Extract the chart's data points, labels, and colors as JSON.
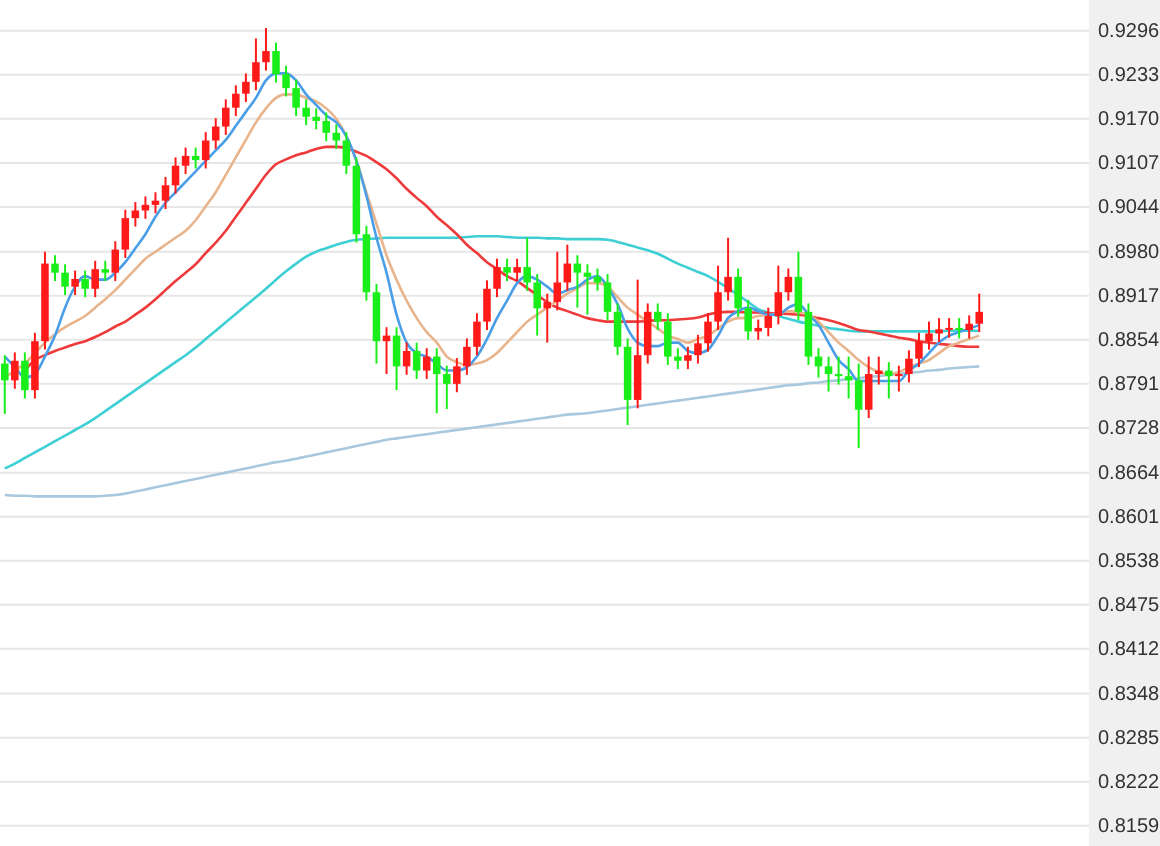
{
  "chart_data": {
    "type": "candlestick",
    "categories": [
      null,
      null,
      null,
      null,
      null,
      null,
      null,
      null,
      null,
      null,
      null,
      null,
      null,
      null,
      null,
      null,
      null,
      null,
      null,
      null,
      null,
      null,
      null,
      null,
      null,
      null,
      null,
      null,
      null,
      null,
      null,
      null,
      null,
      null,
      null,
      null,
      null,
      null,
      null,
      null,
      null,
      null,
      null,
      null,
      null,
      null,
      null,
      null,
      null,
      null,
      null,
      null,
      null,
      null,
      null,
      null,
      null,
      null,
      null,
      null,
      null,
      null,
      null,
      null,
      null,
      null,
      null,
      null,
      null,
      null,
      null,
      null,
      null,
      null,
      null,
      null,
      null,
      null,
      null,
      null,
      null,
      null,
      null,
      null,
      null,
      null,
      null,
      null,
      null,
      null,
      null,
      null,
      null,
      null,
      null,
      null,
      null,
      null
    ],
    "ohlc": [
      [
        0.882,
        0.8832,
        0.8748,
        0.8796
      ],
      [
        0.8796,
        0.8836,
        0.8784,
        0.8824
      ],
      [
        0.8824,
        0.8836,
        0.877,
        0.8782
      ],
      [
        0.8782,
        0.8864,
        0.877,
        0.8852
      ],
      [
        0.8852,
        0.898,
        0.884,
        0.8963
      ],
      [
        0.8963,
        0.8975,
        0.8938,
        0.895
      ],
      [
        0.895,
        0.8962,
        0.8918,
        0.893
      ],
      [
        0.893,
        0.8953,
        0.8918,
        0.8941
      ],
      [
        0.8941,
        0.8953,
        0.8915,
        0.8927
      ],
      [
        0.8927,
        0.8967,
        0.8915,
        0.8955
      ],
      [
        0.8955,
        0.8967,
        0.8938,
        0.895
      ],
      [
        0.895,
        0.8995,
        0.8938,
        0.8983
      ],
      [
        0.8983,
        0.904,
        0.8971,
        0.9028
      ],
      [
        0.9028,
        0.9051,
        0.9016,
        0.9039
      ],
      [
        0.9039,
        0.9059,
        0.9027,
        0.9047
      ],
      [
        0.9047,
        0.9065,
        0.9035,
        0.9053
      ],
      [
        0.9053,
        0.9087,
        0.9041,
        0.9075
      ],
      [
        0.9075,
        0.9115,
        0.9063,
        0.9103
      ],
      [
        0.9103,
        0.9129,
        0.9091,
        0.9117
      ],
      [
        0.9117,
        0.9129,
        0.9099,
        0.9111
      ],
      [
        0.9111,
        0.9151,
        0.9099,
        0.9139
      ],
      [
        0.9139,
        0.9171,
        0.9127,
        0.9159
      ],
      [
        0.9159,
        0.9198,
        0.9147,
        0.9186
      ],
      [
        0.9186,
        0.9218,
        0.9174,
        0.9206
      ],
      [
        0.9206,
        0.9235,
        0.9194,
        0.9223
      ],
      [
        0.9223,
        0.9285,
        0.9211,
        0.9251
      ],
      [
        0.9251,
        0.93,
        0.9239,
        0.9267
      ],
      [
        0.9267,
        0.9279,
        0.9222,
        0.9234
      ],
      [
        0.9234,
        0.9246,
        0.9202,
        0.9214
      ],
      [
        0.9214,
        0.9226,
        0.9174,
        0.9186
      ],
      [
        0.9186,
        0.9198,
        0.9161,
        0.9173
      ],
      [
        0.9173,
        0.9185,
        0.9155,
        0.9167
      ],
      [
        0.9167,
        0.9179,
        0.9138,
        0.915
      ],
      [
        0.915,
        0.9162,
        0.9127,
        0.9139
      ],
      [
        0.9139,
        0.9151,
        0.9091,
        0.9103
      ],
      [
        0.9103,
        0.9115,
        0.8993,
        0.9005
      ],
      [
        0.9005,
        0.9017,
        0.891,
        0.8922
      ],
      [
        0.8922,
        0.8934,
        0.882,
        0.8852
      ],
      [
        0.8852,
        0.8872,
        0.8805,
        0.886
      ],
      [
        0.886,
        0.8872,
        0.8782,
        0.8816
      ],
      [
        0.8816,
        0.885,
        0.8804,
        0.8838
      ],
      [
        0.8838,
        0.885,
        0.8798,
        0.881
      ],
      [
        0.881,
        0.8842,
        0.8798,
        0.883
      ],
      [
        0.883,
        0.8842,
        0.8749,
        0.8805
      ],
      [
        0.8805,
        0.8817,
        0.8755,
        0.8791
      ],
      [
        0.8791,
        0.8828,
        0.8779,
        0.8816
      ],
      [
        0.8816,
        0.8856,
        0.8804,
        0.8844
      ],
      [
        0.8844,
        0.8892,
        0.8832,
        0.888
      ],
      [
        0.888,
        0.8939,
        0.8868,
        0.8927
      ],
      [
        0.8927,
        0.897,
        0.8915,
        0.8958
      ],
      [
        0.8958,
        0.897,
        0.8938,
        0.895
      ],
      [
        0.895,
        0.897,
        0.8938,
        0.8958
      ],
      [
        0.8958,
        0.9,
        0.8924,
        0.8936
      ],
      [
        0.8936,
        0.8948,
        0.886,
        0.8899
      ],
      [
        0.8899,
        0.892,
        0.885,
        0.8908
      ],
      [
        0.8908,
        0.898,
        0.8896,
        0.8936
      ],
      [
        0.8936,
        0.899,
        0.8924,
        0.8963
      ],
      [
        0.8963,
        0.8975,
        0.89,
        0.895
      ],
      [
        0.895,
        0.8962,
        0.889,
        0.8944
      ],
      [
        0.8944,
        0.8956,
        0.8924,
        0.8936
      ],
      [
        0.8936,
        0.8948,
        0.8882,
        0.8894
      ],
      [
        0.8894,
        0.8906,
        0.8832,
        0.8844
      ],
      [
        0.8844,
        0.8856,
        0.8732,
        0.8768
      ],
      [
        0.8768,
        0.894,
        0.8756,
        0.8832
      ],
      [
        0.8832,
        0.8906,
        0.882,
        0.8894
      ],
      [
        0.8894,
        0.8906,
        0.8868,
        0.888
      ],
      [
        0.888,
        0.8892,
        0.8818,
        0.883
      ],
      [
        0.883,
        0.8842,
        0.8812,
        0.8824
      ],
      [
        0.8824,
        0.8844,
        0.8812,
        0.8832
      ],
      [
        0.8832,
        0.8861,
        0.882,
        0.8849
      ],
      [
        0.8849,
        0.8892,
        0.8837,
        0.888
      ],
      [
        0.888,
        0.896,
        0.8868,
        0.8922
      ],
      [
        0.8922,
        0.9,
        0.891,
        0.8944
      ],
      [
        0.8944,
        0.8956,
        0.8887,
        0.8899
      ],
      [
        0.8899,
        0.8911,
        0.8854,
        0.8866
      ],
      [
        0.8866,
        0.8883,
        0.8854,
        0.8871
      ],
      [
        0.8871,
        0.89,
        0.8859,
        0.8888
      ],
      [
        0.8888,
        0.896,
        0.8876,
        0.8922
      ],
      [
        0.8922,
        0.8956,
        0.891,
        0.8944
      ],
      [
        0.8944,
        0.898,
        0.8882,
        0.8894
      ],
      [
        0.8894,
        0.8906,
        0.8818,
        0.883
      ],
      [
        0.883,
        0.8842,
        0.88,
        0.8816
      ],
      [
        0.8816,
        0.883,
        0.878,
        0.8805
      ],
      [
        0.8805,
        0.883,
        0.879,
        0.8802
      ],
      [
        0.8802,
        0.883,
        0.877,
        0.8796
      ],
      [
        0.8796,
        0.882,
        0.8699,
        0.8754
      ],
      [
        0.8754,
        0.883,
        0.8742,
        0.8805
      ],
      [
        0.8805,
        0.883,
        0.879,
        0.881
      ],
      [
        0.881,
        0.8822,
        0.877,
        0.8802
      ],
      [
        0.8802,
        0.8817,
        0.878,
        0.8805
      ],
      [
        0.8805,
        0.8839,
        0.8793,
        0.8827
      ],
      [
        0.8827,
        0.8864,
        0.8815,
        0.8852
      ],
      [
        0.8852,
        0.888,
        0.884,
        0.8863
      ],
      [
        0.8863,
        0.8885,
        0.8851,
        0.8869
      ],
      [
        0.8869,
        0.8885,
        0.8857,
        0.8871
      ],
      [
        0.8871,
        0.8885,
        0.8856,
        0.8868
      ],
      [
        0.8868,
        0.8889,
        0.8856,
        0.8877
      ],
      [
        0.8877,
        0.892,
        0.8865,
        0.8894
      ]
    ],
    "colors": [
      "#1aee1a",
      "#ff1a1a",
      "#1aee1a",
      "#ff1a1a",
      "#ff1a1a",
      "#1aee1a",
      "#1aee1a",
      "#ff1a1a",
      "#1aee1a",
      "#ff1a1a",
      "#1aee1a",
      "#ff1a1a",
      "#ff1a1a",
      "#ff1a1a",
      "#ff1a1a",
      "#ff1a1a",
      "#ff1a1a",
      "#ff1a1a",
      "#ff1a1a",
      "#1aee1a",
      "#ff1a1a",
      "#ff1a1a",
      "#ff1a1a",
      "#ff1a1a",
      "#ff1a1a",
      "#ff1a1a",
      "#ff1a1a",
      "#1aee1a",
      "#1aee1a",
      "#1aee1a",
      "#1aee1a",
      "#1aee1a",
      "#1aee1a",
      "#1aee1a",
      "#1aee1a",
      "#1aee1a",
      "#1aee1a",
      "#1aee1a",
      "#ff1a1a",
      "#1aee1a",
      "#ff1a1a",
      "#1aee1a",
      "#ff1a1a",
      "#1aee1a",
      "#1aee1a",
      "#ff1a1a",
      "#ff1a1a",
      "#ff1a1a",
      "#ff1a1a",
      "#ff1a1a",
      "#1aee1a",
      "#ff1a1a",
      "#1aee1a",
      "#1aee1a",
      "#ff1a1a",
      "#ff1a1a",
      "#ff1a1a",
      "#1aee1a",
      "#1aee1a",
      "#1aee1a",
      "#1aee1a",
      "#1aee1a",
      "#1aee1a",
      "#ff1a1a",
      "#ff1a1a",
      "#1aee1a",
      "#1aee1a",
      "#1aee1a",
      "#ff1a1a",
      "#ff1a1a",
      "#ff1a1a",
      "#ff1a1a",
      "#ff1a1a",
      "#1aee1a",
      "#1aee1a",
      "#ff1a1a",
      "#ff1a1a",
      "#ff1a1a",
      "#ff1a1a",
      "#1aee1a",
      "#1aee1a",
      "#1aee1a",
      "#1aee1a",
      "#1aee1a",
      "#1aee1a",
      "#1aee1a",
      "#ff1a1a",
      "#ff1a1a",
      "#1aee1a",
      "#ff1a1a",
      "#ff1a1a",
      "#ff1a1a",
      "#ff1a1a",
      "#ff1a1a",
      "#ff1a1a",
      "#1aee1a",
      "#ff1a1a",
      "#ff1a1a"
    ],
    "series": [
      {
        "type": "line",
        "color": "#a8c8e0",
        "values": [
          0.8632,
          0.8631,
          0.8631,
          0.863,
          0.863,
          0.863,
          0.863,
          0.863,
          0.863,
          0.863,
          0.8631,
          0.8632,
          0.8634,
          0.8637,
          0.864,
          0.8643,
          0.8646,
          0.8649,
          0.8652,
          0.8655,
          0.8658,
          0.8661,
          0.8664,
          0.8667,
          0.867,
          0.8673,
          0.8676,
          0.8679,
          0.8681,
          0.8684,
          0.8687,
          0.869,
          0.8693,
          0.8696,
          0.8699,
          0.8702,
          0.8705,
          0.8708,
          0.8711,
          0.8713,
          0.8715,
          0.8717,
          0.8719,
          0.8721,
          0.8723,
          0.8725,
          0.8727,
          0.8729,
          0.8731,
          0.8733,
          0.8735,
          0.8737,
          0.8739,
          0.8741,
          0.8743,
          0.8745,
          0.8747,
          0.8748,
          0.8749,
          0.8751,
          0.8753,
          0.8755,
          0.8757,
          0.8759,
          0.8761,
          0.8763,
          0.8765,
          0.8767,
          0.8769,
          0.8771,
          0.8773,
          0.8775,
          0.8777,
          0.8779,
          0.8781,
          0.8783,
          0.8785,
          0.8787,
          0.8789,
          0.879,
          0.8792,
          0.8793,
          0.8795,
          0.8796,
          0.8798,
          0.8799,
          0.8801,
          0.8802,
          0.8804,
          0.8805,
          0.8807,
          0.8808,
          0.881,
          0.8811,
          0.8813,
          0.8814,
          0.8815,
          0.8816
        ]
      },
      {
        "type": "line",
        "color": "#3ecfd4",
        "values": [
          0.867,
          0.8677,
          0.8685,
          0.8693,
          0.8701,
          0.8709,
          0.8717,
          0.8725,
          0.8733,
          0.8742,
          0.8752,
          0.8762,
          0.8772,
          0.8782,
          0.8792,
          0.8802,
          0.8812,
          0.8822,
          0.8832,
          0.8843,
          0.8855,
          0.8867,
          0.8879,
          0.8891,
          0.8903,
          0.8915,
          0.8927,
          0.894,
          0.8952,
          0.8963,
          0.8973,
          0.898,
          0.8985,
          0.899,
          0.8994,
          0.8997,
          0.8998,
          0.8999,
          0.9,
          0.9,
          0.9,
          0.9,
          0.9,
          0.9,
          0.9,
          0.9,
          0.9001,
          0.9002,
          0.9002,
          0.9002,
          0.9001,
          0.9,
          0.9,
          0.9,
          0.8999,
          0.8999,
          0.8998,
          0.8998,
          0.8998,
          0.8998,
          0.8997,
          0.8994,
          0.899,
          0.8986,
          0.8982,
          0.8977,
          0.897,
          0.8963,
          0.8957,
          0.8951,
          0.8945,
          0.8937,
          0.8928,
          0.8918,
          0.8908,
          0.8898,
          0.8893,
          0.8888,
          0.8884,
          0.888,
          0.8877,
          0.8874,
          0.8871,
          0.8869,
          0.8867,
          0.8866,
          0.8866,
          0.8866,
          0.8866,
          0.8866,
          0.8866,
          0.8866,
          0.8866,
          0.8866,
          0.8867,
          0.8867,
          0.8867,
          0.8867
        ]
      },
      {
        "type": "line",
        "color": "#ee3a3a",
        "values": [
          null,
          null,
          0.881,
          0.8825,
          0.8832,
          0.8838,
          0.8843,
          0.8848,
          0.8852,
          0.8858,
          0.8865,
          0.8873,
          0.888,
          0.889,
          0.89,
          0.8912,
          0.8925,
          0.8938,
          0.895,
          0.8962,
          0.8978,
          0.8993,
          0.901,
          0.903,
          0.905,
          0.907,
          0.909,
          0.9105,
          0.9112,
          0.9118,
          0.9122,
          0.9127,
          0.913,
          0.913,
          0.9128,
          0.9123,
          0.9117,
          0.9108,
          0.9098,
          0.9085,
          0.907,
          0.9057,
          0.9045,
          0.903,
          0.9018,
          0.9005,
          0.899,
          0.8978,
          0.8965,
          0.8955,
          0.8945,
          0.8938,
          0.8928,
          0.8918,
          0.8908,
          0.89,
          0.8895,
          0.889,
          0.8885,
          0.8882,
          0.888,
          0.888,
          0.888,
          0.888,
          0.8881,
          0.8882,
          0.8882,
          0.8883,
          0.8884,
          0.8886,
          0.889,
          0.8893,
          0.8894,
          0.8894,
          0.8893,
          0.8893,
          0.8892,
          0.8892,
          0.8891,
          0.889,
          0.8888,
          0.8885,
          0.8882,
          0.8878,
          0.8873,
          0.8868,
          0.8866,
          0.8863,
          0.886,
          0.8857,
          0.8855,
          0.8852,
          0.885,
          0.8848,
          0.8847,
          0.8845,
          0.8844,
          0.8844
        ]
      },
      {
        "type": "line",
        "color": "#e8b48c",
        "values": [
          0.88,
          0.881,
          0.882,
          0.8835,
          0.885,
          0.8862,
          0.8872,
          0.888,
          0.8888,
          0.89,
          0.8912,
          0.8925,
          0.894,
          0.8955,
          0.897,
          0.898,
          0.899,
          0.9,
          0.901,
          0.9025,
          0.9045,
          0.9065,
          0.909,
          0.9115,
          0.914,
          0.9165,
          0.9185,
          0.92,
          0.9205,
          0.9205,
          0.92,
          0.9195,
          0.9185,
          0.917,
          0.9145,
          0.911,
          0.9065,
          0.902,
          0.8975,
          0.894,
          0.891,
          0.8885,
          0.8865,
          0.885,
          0.883,
          0.8822,
          0.8818,
          0.882,
          0.8825,
          0.8835,
          0.885,
          0.8865,
          0.888,
          0.889,
          0.89,
          0.891,
          0.892,
          0.8928,
          0.8935,
          0.8935,
          0.893,
          0.8915,
          0.89,
          0.889,
          0.888,
          0.887,
          0.886,
          0.8855,
          0.885,
          0.8855,
          0.886,
          0.887,
          0.888,
          0.8885,
          0.8885,
          0.8888,
          0.889,
          0.8892,
          0.8895,
          0.8893,
          0.889,
          0.888,
          0.8865,
          0.885,
          0.8838,
          0.8825,
          0.8815,
          0.8808,
          0.8805,
          0.8808,
          0.8815,
          0.882,
          0.8825,
          0.8835,
          0.8845,
          0.885,
          0.8855,
          0.886
        ]
      },
      {
        "type": "line",
        "color": "#4a9ee8",
        "values": [
          0.883,
          0.8815,
          0.88,
          0.8805,
          0.883,
          0.886,
          0.89,
          0.893,
          0.8945,
          0.894,
          0.894,
          0.895,
          0.8965,
          0.8985,
          0.9005,
          0.903,
          0.905,
          0.9065,
          0.908,
          0.9095,
          0.911,
          0.9125,
          0.914,
          0.916,
          0.918,
          0.92,
          0.9225,
          0.9235,
          0.9235,
          0.9225,
          0.9205,
          0.919,
          0.9175,
          0.9165,
          0.9145,
          0.911,
          0.906,
          0.9,
          0.895,
          0.889,
          0.885,
          0.8835,
          0.883,
          0.882,
          0.881,
          0.881,
          0.8815,
          0.883,
          0.8855,
          0.8885,
          0.891,
          0.8935,
          0.8945,
          0.894,
          0.893,
          0.892,
          0.8925,
          0.893,
          0.894,
          0.8945,
          0.893,
          0.8905,
          0.887,
          0.885,
          0.8845,
          0.8845,
          0.885,
          0.885,
          0.8838,
          0.8835,
          0.884,
          0.886,
          0.8885,
          0.8895,
          0.89,
          0.8895,
          0.889,
          0.889,
          0.89,
          0.8905,
          0.889,
          0.8875,
          0.885,
          0.8825,
          0.8812,
          0.8795,
          0.8795,
          0.8795,
          0.8795,
          0.8795,
          0.881,
          0.882,
          0.8835,
          0.885,
          0.886,
          0.8865,
          0.887,
          0.8875
        ]
      }
    ],
    "ylim": [
      0.813,
      0.934
    ],
    "yticks": [
      0.9296,
      0.9233,
      {
        "value": 0.917,
        "label": "0.9170"
      },
      0.9107,
      0.9044,
      {
        "value": 0.898,
        "label": "0.8980"
      },
      0.8917,
      0.8854,
      0.8791,
      0.8728,
      0.8664,
      0.8601,
      0.8538,
      0.8475,
      0.8412,
      0.8348,
      0.8285,
      0.8222,
      0.8159
    ],
    "grid": "y",
    "tick_labels": "y"
  }
}
